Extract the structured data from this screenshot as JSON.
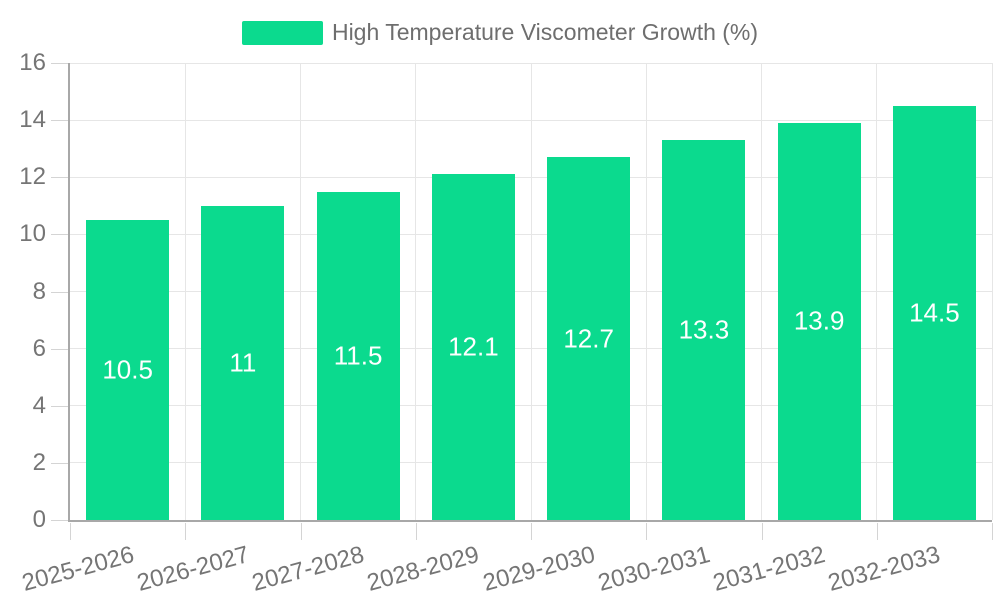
{
  "legend": {
    "label": "High Temperature Viscometer Growth (%)"
  },
  "chart_data": {
    "type": "bar",
    "title": "",
    "categories": [
      "2025-2026",
      "2026-2027",
      "2027-2028",
      "2028-2029",
      "2029-2030",
      "2030-2031",
      "2031-2032",
      "2032-2033"
    ],
    "series": [
      {
        "name": "High Temperature Viscometer Growth (%)",
        "values": [
          10.5,
          11,
          11.5,
          12.1,
          12.7,
          13.3,
          13.9,
          14.5
        ]
      }
    ],
    "xlabel": "",
    "ylabel": "",
    "ylim": [
      0,
      16
    ],
    "yticks": [
      0,
      2,
      4,
      6,
      8,
      10,
      12,
      14,
      16
    ],
    "grid": "both",
    "legend_position": "top",
    "bar_label_position": "inside-center"
  },
  "colors": {
    "bar": "#0bda8e",
    "bar_label": "#ffffff",
    "axis_line": "#a8a8a8",
    "tick": "#d4d4d4",
    "gridline": "#e6e6e6",
    "axis_text": "#757575",
    "legend_text": "#6e6e6e",
    "background": "#ffffff"
  }
}
